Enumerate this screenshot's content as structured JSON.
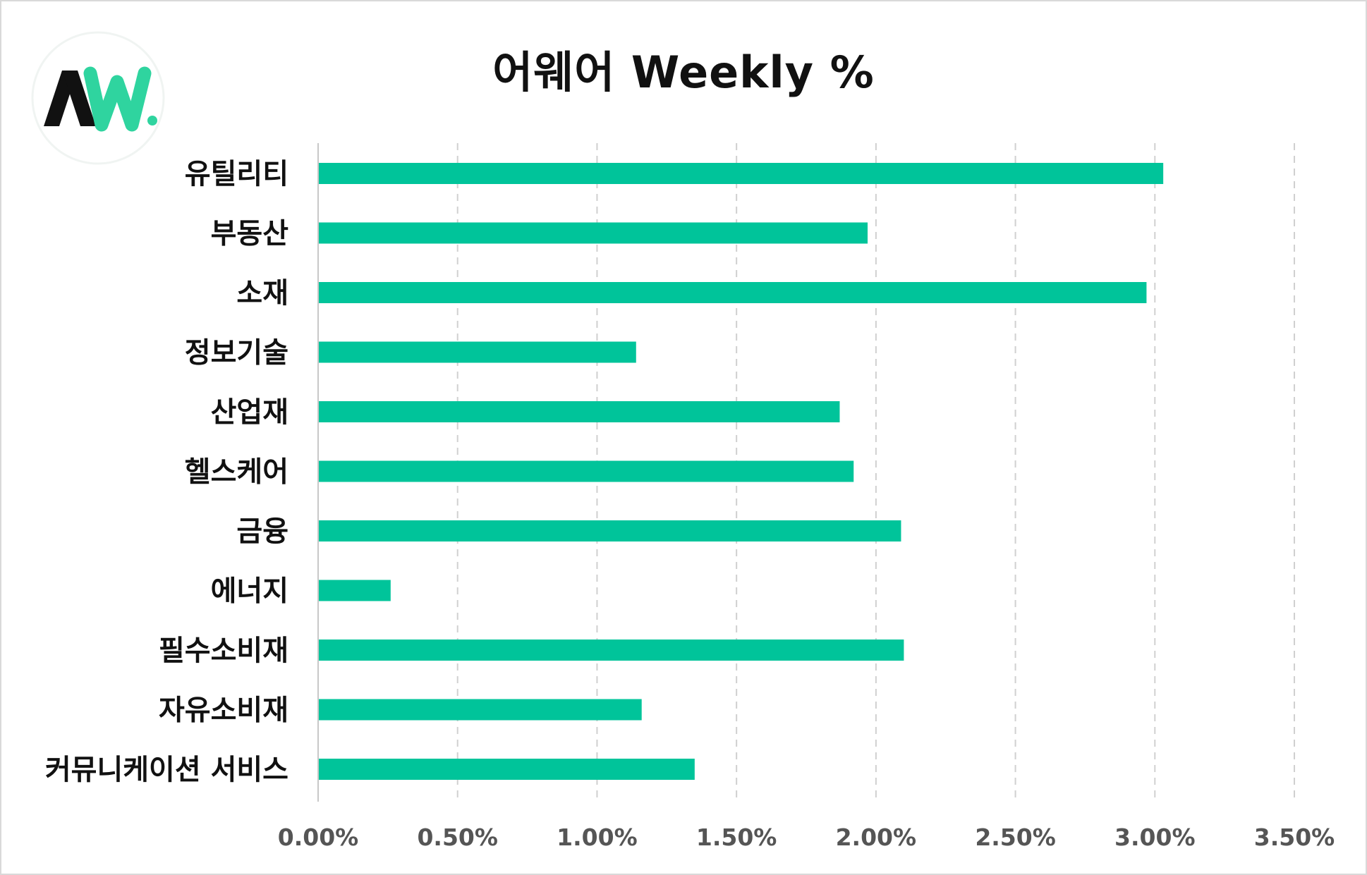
{
  "chart_data": {
    "type": "bar",
    "orientation": "horizontal",
    "title": "어웨어 Weekly %",
    "categories": [
      "유틸리티",
      "부동산",
      "소재",
      "정보기술",
      "산업재",
      "헬스케어",
      "금융",
      "에너지",
      "필수소비재",
      "자유소비재",
      "커뮤니케이션 서비스"
    ],
    "values": [
      3.03,
      1.97,
      2.97,
      1.14,
      1.87,
      1.92,
      2.09,
      0.26,
      2.1,
      1.16,
      1.35
    ],
    "xlim": [
      0,
      3.5
    ],
    "xticks": [
      0,
      0.5,
      1.0,
      1.5,
      2.0,
      2.5,
      3.0,
      3.5
    ],
    "xtick_labels": [
      "0.00%",
      "0.50%",
      "1.00%",
      "1.50%",
      "2.00%",
      "2.50%",
      "3.00%",
      "3.50%"
    ],
    "xlabel": "",
    "ylabel": "",
    "grid": "vertical dashed",
    "legend": "none",
    "bar_color": "#00c49a",
    "grid_color": "#d0d0d0",
    "axis_color": "#c8c8c8"
  },
  "logo": {
    "name": "AW-logo",
    "dark_color": "#111111",
    "accent_color": "#2fd49f"
  }
}
